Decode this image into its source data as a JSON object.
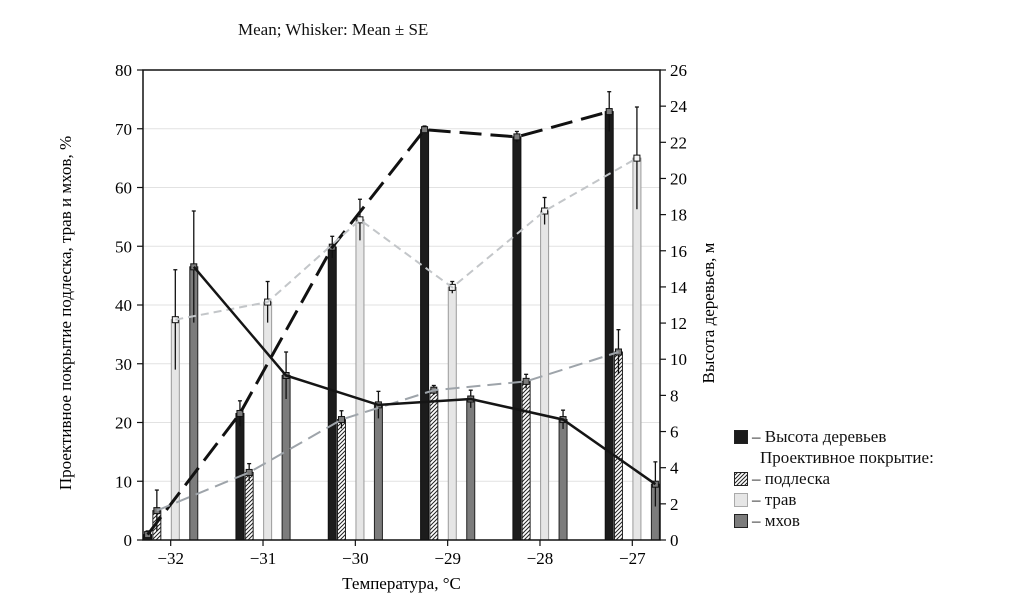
{
  "title": "Mean; Whisker: Mean ± SE",
  "chart_data": {
    "type": "bar",
    "title": "Mean; Whisker: Mean ± SE",
    "xlabel": "Температура, °С",
    "ylabel_left": "Проективное покрытие подлеска, трав и мхов, %",
    "ylabel_right": "Высота деревьев, м",
    "categories": [
      "−32",
      "−31",
      "−30",
      "−29",
      "−28",
      "−27"
    ],
    "x_range": [
      -32.3,
      -26.7
    ],
    "ylim_left": [
      0,
      80
    ],
    "yticks_left": [
      0,
      10,
      20,
      30,
      40,
      50,
      60,
      70,
      80
    ],
    "ylim_right": [
      0,
      26
    ],
    "yticks_right": [
      0,
      2,
      4,
      6,
      8,
      10,
      12,
      14,
      16,
      18,
      20,
      22,
      24,
      26
    ],
    "legend_position": "right",
    "legend_heading": "Проективное покрытие:",
    "series": [
      {
        "name": "– Высота деревьев",
        "axis": "right",
        "style": "dark",
        "x": [
          -32.25,
          -31.25,
          -30.25,
          -29.25,
          -28.25,
          -27.25
        ],
        "values": [
          0.3,
          7.0,
          16.2,
          22.7,
          22.3,
          23.7
        ],
        "se": [
          0.2,
          0.7,
          0.6,
          0.2,
          0.3,
          1.1
        ],
        "trend": "long-dash"
      },
      {
        "name": "– подлеска",
        "axis": "left",
        "style": "hatched",
        "x": [
          -32.15,
          -31.15,
          -30.15,
          -29.15,
          -28.15,
          -27.15
        ],
        "values": [
          5,
          11.5,
          20.5,
          25.5,
          27,
          32
        ],
        "se": [
          3.5,
          1.5,
          1.5,
          0.8,
          1.2,
          3.8
        ],
        "trend": "gray-dash"
      },
      {
        "name": "– трав",
        "axis": "left",
        "style": "light",
        "x": [
          -31.95,
          -30.95,
          -29.95,
          -28.95,
          -27.95,
          -26.95
        ],
        "values": [
          37.5,
          40.5,
          54.5,
          43,
          56,
          65
        ],
        "se": [
          8.5,
          3.5,
          3.5,
          1.0,
          2.3,
          8.7
        ],
        "trend": "light-dash"
      },
      {
        "name": "– мхов",
        "axis": "left",
        "style": "medium",
        "x": [
          -31.75,
          -30.75,
          -29.75,
          -28.75,
          -27.75,
          -26.75
        ],
        "values": [
          46.5,
          28,
          23,
          24,
          20.5,
          9.5
        ],
        "se": [
          9.5,
          4,
          2.3,
          1.5,
          1.6,
          3.8
        ],
        "trend": "solid"
      }
    ]
  },
  "colors": {
    "dark": "#1c1c1c",
    "hatched": "#ffffff",
    "light": "#e6e6e6",
    "medium": "#7c7c7c",
    "trend_dark": "#111111",
    "trend_gray": "#9ea4aa",
    "trend_light": "#c3c6c9",
    "trend_solid": "#151515"
  }
}
